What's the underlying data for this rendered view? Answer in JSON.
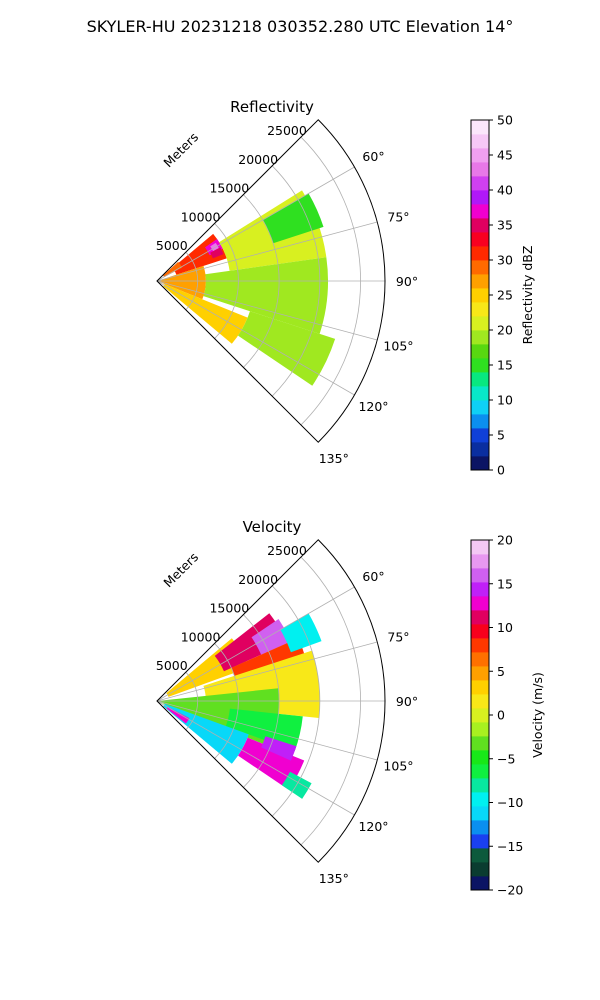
{
  "title": "SKYLER-HU  20231218  030352.280 UTC Elevation 14°",
  "chart_data": [
    {
      "type": "heatmap",
      "subtype": "polar-sector (radar PPI)",
      "title": "Reflectivity",
      "radial_axis_label": "Meters",
      "radial_range": [
        0,
        28000
      ],
      "radial_ticks": [
        5000,
        10000,
        15000,
        20000,
        25000
      ],
      "azimuth_range": [
        45,
        135
      ],
      "azimuth_ticks": [
        "60°",
        "75°",
        "90°",
        "105°",
        "120°",
        "135°"
      ],
      "grid": true,
      "colorbar": {
        "label": "Reflectivity dBZ",
        "min": 0,
        "max": 50,
        "ticks": [
          0,
          5,
          10,
          15,
          20,
          25,
          30,
          35,
          40,
          45,
          50
        ],
        "colors": [
          "#0b1464",
          "#0a2ea0",
          "#1040d8",
          "#0b8fef",
          "#0fd0f5",
          "#08e8c8",
          "#08e880",
          "#2fe020",
          "#58d810",
          "#a0e820",
          "#d8f020",
          "#f8e818",
          "#ffd000",
          "#ffa000",
          "#ff6a00",
          "#ff2a00",
          "#f80020",
          "#e00060",
          "#f000d0",
          "#b018f8",
          "#d040f0",
          "#e878e8",
          "#f0a0f0",
          "#f6c8f6",
          "#fbe6fb"
        ]
      },
      "regions": [
        {
          "az": [
            50,
            72
          ],
          "r": [
            2500,
            9000
          ],
          "v": 31
        },
        {
          "az": [
            55,
            64
          ],
          "r": [
            7200,
            9000
          ],
          "v": 37
        },
        {
          "az": [
            57,
            62
          ],
          "r": [
            7800,
            8600
          ],
          "v": 43
        },
        {
          "az": [
            62,
            68
          ],
          "r": [
            7400,
            8800
          ],
          "v": 35
        },
        {
          "az": [
            48,
            62
          ],
          "r": [
            1000,
            3500
          ],
          "v": 28
        },
        {
          "az": [
            72,
            112
          ],
          "r": [
            0,
            6000
          ],
          "v": 26
        },
        {
          "az": [
            112,
            130
          ],
          "r": [
            1000,
            12000
          ],
          "v": 25
        },
        {
          "az": [
            58,
            82
          ],
          "r": [
            9000,
            21000
          ],
          "v": 21
        },
        {
          "az": [
            82,
            108
          ],
          "r": [
            6000,
            21000
          ],
          "v": 18
        },
        {
          "az": [
            108,
            124
          ],
          "r": [
            12000,
            23000
          ],
          "v": 18
        },
        {
          "az": [
            60,
            72
          ],
          "r": [
            15000,
            21500
          ],
          "v": 14
        }
      ]
    },
    {
      "type": "heatmap",
      "subtype": "polar-sector (radar PPI)",
      "title": "Velocity",
      "radial_axis_label": "Meters",
      "radial_range": [
        0,
        28000
      ],
      "radial_ticks": [
        5000,
        10000,
        15000,
        20000,
        25000
      ],
      "azimuth_range": [
        45,
        135
      ],
      "azimuth_ticks": [
        "60°",
        "75°",
        "90°",
        "105°",
        "120°",
        "135°"
      ],
      "grid": true,
      "colorbar": {
        "label": "Velocity (m/s)",
        "min": -20,
        "max": 20,
        "ticks": [
          -20,
          -15,
          -10,
          -5,
          0,
          5,
          10,
          15,
          20
        ],
        "colors": [
          "#0b1464",
          "#0a3c30",
          "#0c5a3c",
          "#1a40f0",
          "#0b8fef",
          "#08d8f8",
          "#00f0f0",
          "#08e8a0",
          "#10f040",
          "#18e818",
          "#60e020",
          "#a8f020",
          "#d8f020",
          "#f8e818",
          "#ffd000",
          "#ffa000",
          "#ff7000",
          "#ff3800",
          "#f8001c",
          "#e00060",
          "#f000d0",
          "#c020f8",
          "#d060f0",
          "#e898f0",
          "#f4c8f4"
        ]
      },
      "regions": [
        {
          "az": [
            50,
            70
          ],
          "r": [
            1500,
            12000
          ],
          "v": 3
        },
        {
          "az": [
            52,
            66
          ],
          "r": [
            9000,
            17500
          ],
          "v": 11
        },
        {
          "az": [
            56,
            66
          ],
          "r": [
            14000,
            18000
          ],
          "v": 16
        },
        {
          "az": [
            66,
            82
          ],
          "r": [
            10000,
            19000
          ],
          "v": 8
        },
        {
          "az": [
            60,
            70
          ],
          "r": [
            17500,
            21500
          ],
          "v": -10
        },
        {
          "az": [
            72,
            96
          ],
          "r": [
            6000,
            20000
          ],
          "v": 1
        },
        {
          "az": [
            84,
            112
          ],
          "r": [
            0,
            15000
          ],
          "v": -4
        },
        {
          "az": [
            96,
            110
          ],
          "r": [
            9000,
            18000
          ],
          "v": -7
        },
        {
          "az": [
            110,
            130
          ],
          "r": [
            1000,
            12000
          ],
          "v": -11
        },
        {
          "az": [
            118,
            128
          ],
          "r": [
            1500,
            4500
          ],
          "v": 13
        },
        {
          "az": [
            112,
            124
          ],
          "r": [
            12000,
            19500
          ],
          "v": 12
        },
        {
          "az": [
            108,
            114
          ],
          "r": [
            14000,
            18000
          ],
          "v": 14
        },
        {
          "az": [
            118,
            124
          ],
          "r": [
            18500,
            21500
          ],
          "v": -8
        }
      ]
    }
  ]
}
